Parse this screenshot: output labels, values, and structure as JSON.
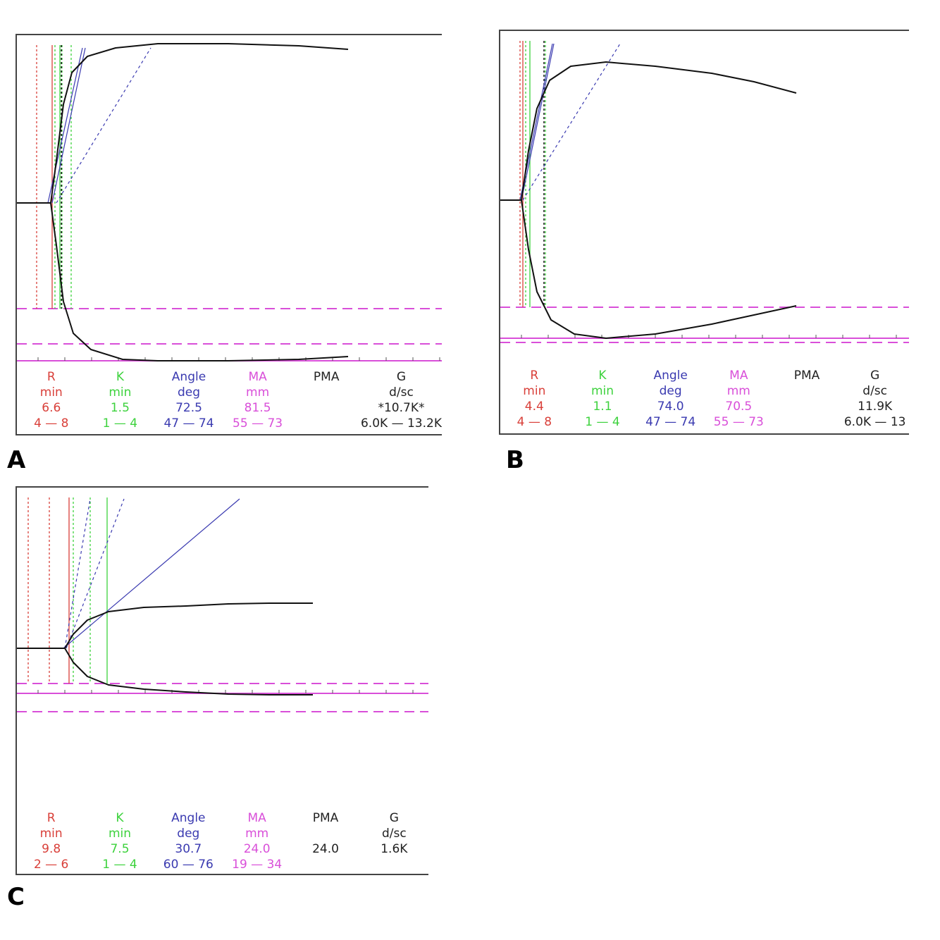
{
  "colors": {
    "r": "#d9403a",
    "k": "#3dd23d",
    "angle": "#3a3ab0",
    "ma": "#d94fd9",
    "text": "#222222",
    "trace": "#111111"
  },
  "chart_data": [
    {
      "type": "line",
      "label": "A",
      "columns": [
        {
          "key": "r",
          "name": "R",
          "unit": "min",
          "value": "6.6",
          "range": "4 — 8"
        },
        {
          "key": "k",
          "name": "K",
          "unit": "min",
          "value": "1.5",
          "range": "1 — 4"
        },
        {
          "key": "angle",
          "name": "Angle",
          "unit": "deg",
          "value": "72.5",
          "range": "47 — 74"
        },
        {
          "key": "ma",
          "name": "MA",
          "unit": "mm",
          "value": "81.5",
          "range": "55 — 73"
        },
        {
          "key": "pma",
          "name": "PMA",
          "unit": "",
          "value": "",
          "range": ""
        },
        {
          "key": "g",
          "name": "G",
          "unit": "d/sc",
          "value": "*10.7K*",
          "range": "6.0K — 13.2K"
        }
      ],
      "trace_upper": [
        [
          0,
          0
        ],
        [
          48,
          0
        ],
        [
          56,
          -60
        ],
        [
          66,
          -140
        ],
        [
          78,
          -185
        ],
        [
          100,
          -208
        ],
        [
          140,
          -220
        ],
        [
          200,
          -226
        ],
        [
          300,
          -226
        ],
        [
          400,
          -223
        ],
        [
          470,
          -218
        ]
      ],
      "trace_lower": [
        [
          0,
          0
        ],
        [
          48,
          0
        ],
        [
          56,
          60
        ],
        [
          66,
          140
        ],
        [
          80,
          185
        ],
        [
          105,
          208
        ],
        [
          150,
          222
        ],
        [
          200,
          224
        ],
        [
          300,
          224
        ],
        [
          400,
          222
        ],
        [
          470,
          218
        ]
      ]
    },
    {
      "type": "line",
      "label": "B",
      "columns": [
        {
          "key": "r",
          "name": "R",
          "unit": "min",
          "value": "4.4",
          "range": "4 — 8"
        },
        {
          "key": "k",
          "name": "K",
          "unit": "min",
          "value": "1.1",
          "range": "1 — 4"
        },
        {
          "key": "angle",
          "name": "Angle",
          "unit": "deg",
          "value": "74.0",
          "range": "47 — 74"
        },
        {
          "key": "ma",
          "name": "MA",
          "unit": "mm",
          "value": "70.5",
          "range": "55 — 73"
        },
        {
          "key": "pma",
          "name": "PMA",
          "unit": "",
          "value": "",
          "range": ""
        },
        {
          "key": "g",
          "name": "G",
          "unit": "d/sc",
          "value": "11.9K",
          "range": "6.0K — 13"
        }
      ],
      "trace_upper": [
        [
          0,
          0
        ],
        [
          30,
          0
        ],
        [
          40,
          -70
        ],
        [
          52,
          -130
        ],
        [
          70,
          -170
        ],
        [
          100,
          -190
        ],
        [
          150,
          -196
        ],
        [
          220,
          -190
        ],
        [
          300,
          -180
        ],
        [
          360,
          -168
        ],
        [
          420,
          -152
        ]
      ],
      "trace_lower": [
        [
          0,
          0
        ],
        [
          30,
          0
        ],
        [
          40,
          70
        ],
        [
          52,
          130
        ],
        [
          72,
          170
        ],
        [
          105,
          190
        ],
        [
          150,
          196
        ],
        [
          220,
          190
        ],
        [
          300,
          176
        ],
        [
          360,
          163
        ],
        [
          420,
          150
        ]
      ]
    },
    {
      "type": "line",
      "label": "C",
      "columns": [
        {
          "key": "r",
          "name": "R",
          "unit": "min",
          "value": "9.8",
          "range": "2 — 6"
        },
        {
          "key": "k",
          "name": "K",
          "unit": "min",
          "value": "7.5",
          "range": "1 — 4"
        },
        {
          "key": "angle",
          "name": "Angle",
          "unit": "deg",
          "value": "30.7",
          "range": "60 — 76"
        },
        {
          "key": "ma",
          "name": "MA",
          "unit": "mm",
          "value": "24.0",
          "range": "19 — 34"
        },
        {
          "key": "pma",
          "name": "PMA",
          "unit": "",
          "value": "24.0",
          "range": ""
        },
        {
          "key": "g",
          "name": "G",
          "unit": "d/sc",
          "value": "1.6K",
          "range": ""
        }
      ],
      "trace_upper": [
        [
          0,
          0
        ],
        [
          68,
          0
        ],
        [
          80,
          -20
        ],
        [
          100,
          -40
        ],
        [
          130,
          -52
        ],
        [
          180,
          -58
        ],
        [
          240,
          -60
        ],
        [
          300,
          -63
        ],
        [
          360,
          -64
        ],
        [
          420,
          -64
        ]
      ],
      "trace_lower": [
        [
          0,
          0
        ],
        [
          68,
          0
        ],
        [
          80,
          20
        ],
        [
          100,
          40
        ],
        [
          130,
          52
        ],
        [
          180,
          58
        ],
        [
          240,
          62
        ],
        [
          300,
          65
        ],
        [
          360,
          66
        ],
        [
          420,
          66
        ]
      ]
    }
  ]
}
